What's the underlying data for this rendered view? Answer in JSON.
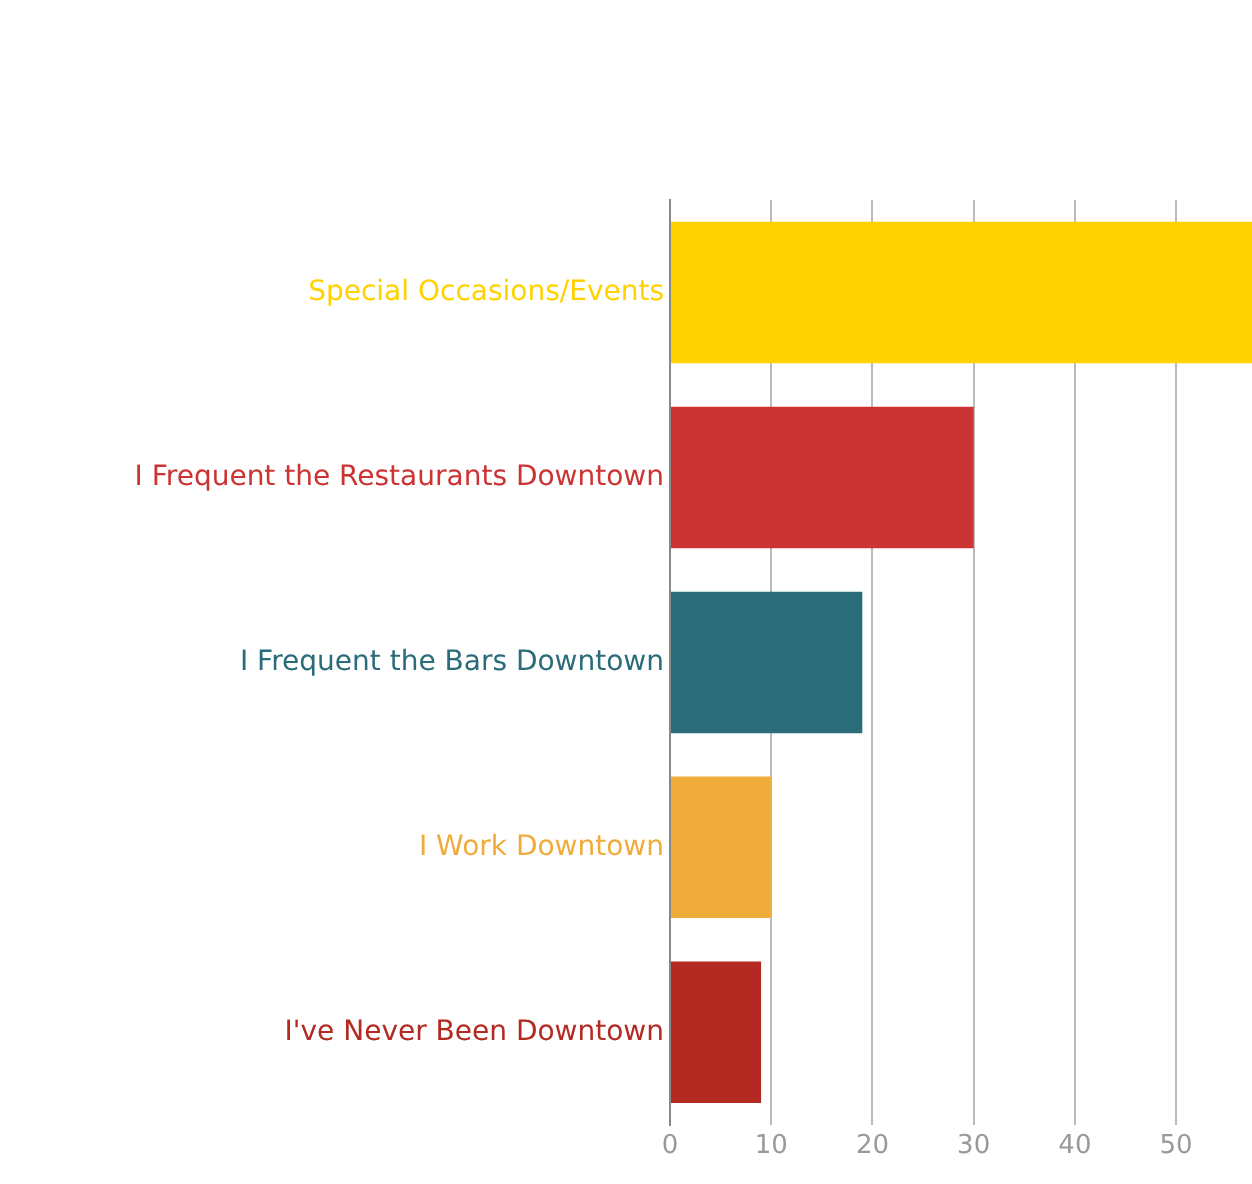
{
  "chart_data": {
    "type": "bar",
    "orientation": "horizontal",
    "categories": [
      "Special Occasions/Events",
      "I Frequent the Restaurants Downtown",
      "I Frequent the Bars Downtown",
      "I Work Downtown",
      "I've Never Been Downtown"
    ],
    "values": [
      57.5,
      30,
      19,
      10,
      9
    ],
    "colors": [
      "#ffd200",
      "#cc3333",
      "#2a6c7a",
      "#f0ac3a",
      "#b22a22"
    ],
    "xlim": [
      0,
      57.5
    ],
    "xticks": [
      0,
      10,
      20,
      30,
      40,
      50
    ],
    "grid": "x",
    "legend": false
  }
}
